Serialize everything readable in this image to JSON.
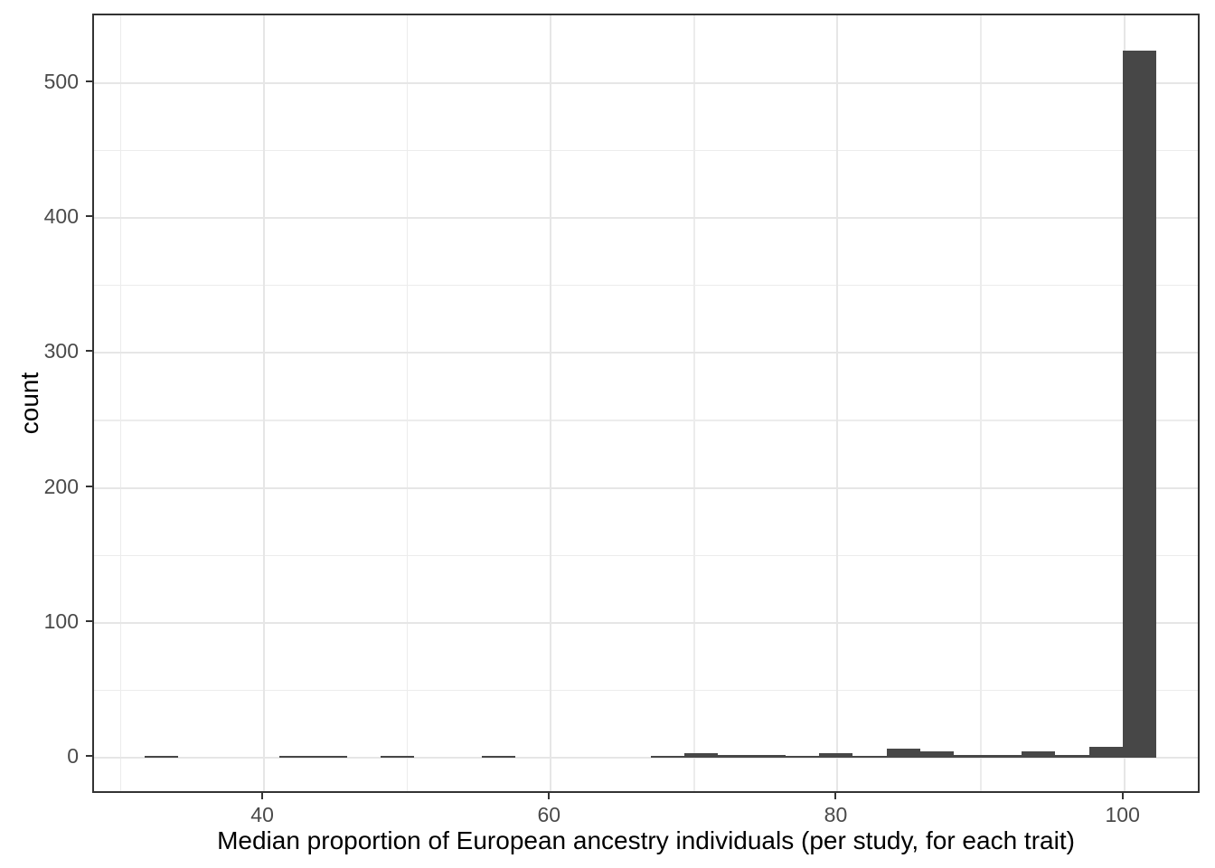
{
  "figure": {
    "background_color": "#ffffff"
  },
  "chart_data": {
    "type": "bar",
    "subtype": "histogram",
    "title": "",
    "xlabel": "Median proportion of European ancestry individuals (per study, for each trait)",
    "ylabel": "count",
    "legend": "none",
    "grid": true,
    "bar_color": "#474747",
    "panel_border_color": "#333333",
    "grid_major_color": "#e6e6e6",
    "grid_minor_color": "#ececec",
    "tick_color": "#333333",
    "tick_label_color": "#4a4a4a",
    "axis_title_color": "#000000",
    "xlim": [
      28.14,
      105.38
    ],
    "ylim": [
      -27.5,
      550.3
    ],
    "x_ticks": [
      40,
      60,
      80,
      100
    ],
    "x_minor_ticks": [
      30,
      50,
      70,
      90
    ],
    "y_ticks": [
      0,
      100,
      200,
      300,
      400,
      500
    ],
    "y_minor_ticks": [
      50,
      150,
      250,
      350,
      450
    ],
    "max_count": 524,
    "bins": {
      "start": 31.66,
      "width": 2.353,
      "counts": [
        1,
        0,
        0,
        0,
        1,
        1,
        0,
        1,
        0,
        0,
        1,
        0,
        0,
        0,
        0,
        1,
        3,
        2,
        2,
        1,
        3,
        1,
        7,
        5,
        2,
        2,
        5,
        2,
        8,
        524
      ]
    }
  }
}
